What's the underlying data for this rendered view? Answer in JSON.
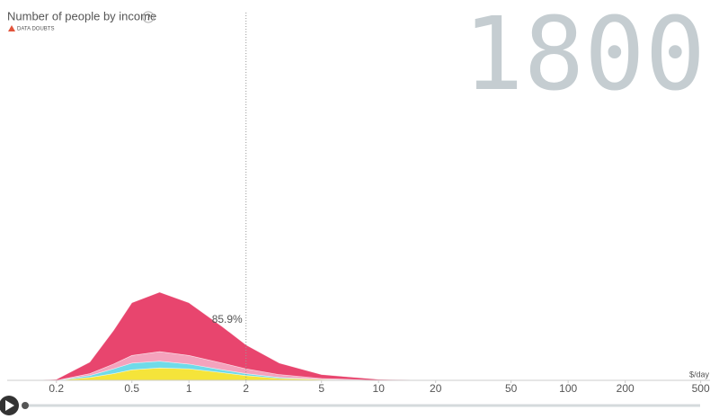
{
  "chart_data": {
    "type": "mountain",
    "title": "Number of people by income",
    "help_label": "?",
    "warning": "DATA DOUBTS",
    "year": "1800",
    "annotation": "85.9%",
    "annotation_x": 2,
    "x_label": "$/day",
    "log_x": true,
    "xlim": [
      0.11,
      560
    ],
    "xticks": [
      0.2,
      0.5,
      1,
      2,
      5,
      10,
      20,
      50,
      100,
      200,
      500
    ],
    "x": [
      0.15,
      0.2,
      0.3,
      0.4,
      0.5,
      0.7,
      1,
      1.5,
      2,
      3,
      5,
      10,
      20
    ],
    "series": [
      {
        "color": "#f5e43a",
        "values": [
          0,
          0,
          3,
          7,
          11,
          13,
          12,
          8,
          5,
          2,
          1,
          0,
          0
        ]
      },
      {
        "color": "#6fdbe9",
        "values": [
          0,
          0,
          2,
          5,
          7,
          7,
          5,
          3,
          2,
          1,
          0,
          0,
          0
        ]
      },
      {
        "color": "#f4a3bd",
        "values": [
          0,
          0,
          2,
          5,
          8,
          10,
          9,
          7,
          5,
          3,
          1,
          0,
          0
        ]
      },
      {
        "color": "#e8456e",
        "values": [
          0,
          1,
          12,
          35,
          55,
          62,
          55,
          38,
          25,
          12,
          4,
          1,
          0
        ]
      }
    ]
  }
}
